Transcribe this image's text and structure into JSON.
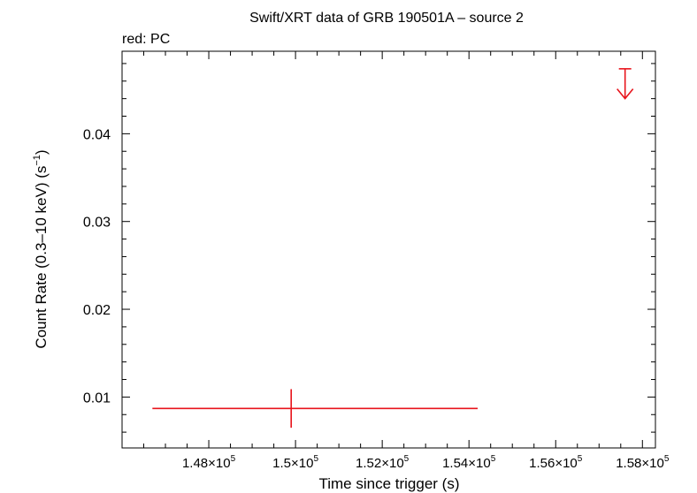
{
  "chart_data": {
    "type": "scatter",
    "title": "Swift/XRT data of GRB 190501A – source 2",
    "subtitle": "red: PC",
    "xlabel": "Time since trigger (s)",
    "ylabel": "Count Rate (0.3–10 keV) (s",
    "ylabel_sup": "−1",
    "ylabel_tail": ")",
    "xlim": [
      146000,
      158300
    ],
    "ylim": [
      0.0042,
      0.0494
    ],
    "x_ticks": [
      {
        "value": 148000,
        "mant": "1.48×10",
        "exp": "5"
      },
      {
        "value": 150000,
        "mant": "1.5×10",
        "exp": "5"
      },
      {
        "value": 152000,
        "mant": "1.52×10",
        "exp": "5"
      },
      {
        "value": 154000,
        "mant": "1.54×10",
        "exp": "5"
      },
      {
        "value": 156000,
        "mant": "1.56×10",
        "exp": "5"
      },
      {
        "value": 158000,
        "mant": "1.58×10",
        "exp": "5"
      }
    ],
    "y_ticks": [
      {
        "value": 0.01,
        "label": "0.01"
      },
      {
        "value": 0.02,
        "label": "0.02"
      },
      {
        "value": 0.03,
        "label": "0.03"
      },
      {
        "value": 0.04,
        "label": "0.04"
      }
    ],
    "series": [
      {
        "color": "#e8141c",
        "points": [
          {
            "x": 149900,
            "xerr_lo": 3200,
            "xerr_hi": 4300,
            "y": 0.0087,
            "yerr_lo": 0.0022,
            "yerr_hi": 0.0022
          }
        ],
        "upper_limits": [
          {
            "x": 157600,
            "y": 0.0474,
            "arrow_to": 0.044
          }
        ]
      }
    ],
    "grid": false,
    "legend": "none"
  }
}
